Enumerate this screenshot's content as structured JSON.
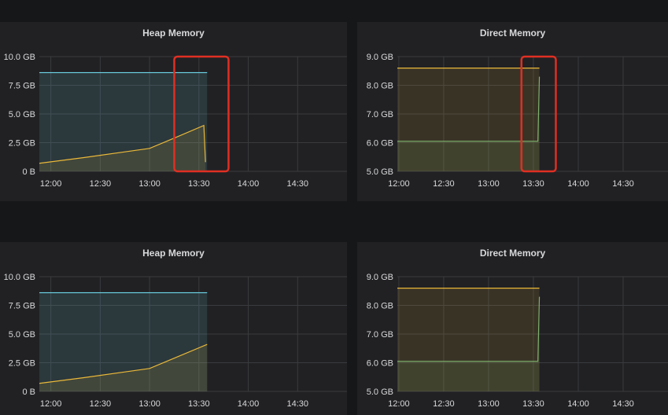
{
  "panels": [
    {
      "title": "Heap Memory"
    },
    {
      "title": "Direct Memory"
    },
    {
      "title": "Heap Memory"
    },
    {
      "title": "Direct Memory"
    }
  ],
  "chart_data": [
    {
      "type": "area",
      "title": "Heap Memory",
      "x_ticks": [
        "12:00",
        "12:30",
        "13:00",
        "13:30",
        "14:00",
        "14:30"
      ],
      "y_ticks": [
        "0 B",
        "2.5 GB",
        "5.0 GB",
        "7.5 GB",
        "10.0 GB"
      ],
      "xlim": [
        "11:53",
        "15:00"
      ],
      "ylim": [
        0,
        10
      ],
      "y_unit": "GB",
      "grid": true,
      "highlight_box": {
        "x_from": "13:15",
        "x_to": "13:48",
        "stroke": "#e02f22"
      },
      "series": [
        {
          "color": "#70dbed",
          "fill": true,
          "points": [
            [
              "11:53",
              8.6
            ],
            [
              "13:35",
              8.6
            ]
          ]
        },
        {
          "color": "#eab839",
          "fill": true,
          "points": [
            [
              "11:53",
              0.7
            ],
            [
              "12:20",
              1.2
            ],
            [
              "12:45",
              1.7
            ],
            [
              "13:00",
              2.0
            ],
            [
              "13:15",
              2.9
            ],
            [
              "13:33",
              4.0
            ],
            [
              "13:34",
              0.8
            ]
          ]
        }
      ]
    },
    {
      "type": "area",
      "title": "Direct Memory",
      "x_ticks": [
        "12:00",
        "12:30",
        "13:00",
        "13:30",
        "14:00",
        "14:30"
      ],
      "y_ticks": [
        "5.0 GB",
        "6.0 GB",
        "7.0 GB",
        "8.0 GB",
        "9.0 GB"
      ],
      "xlim": [
        "11:59",
        "15:00"
      ],
      "ylim": [
        5,
        9
      ],
      "y_unit": "GB",
      "grid": true,
      "highlight_box": {
        "x_from": "13:22",
        "x_to": "13:45",
        "stroke": "#e02f22"
      },
      "series": [
        {
          "color": "#eab839",
          "fill": true,
          "points": [
            [
              "11:59",
              8.6
            ],
            [
              "13:34",
              8.6
            ]
          ]
        },
        {
          "color": "#7eb26d",
          "fill": true,
          "points": [
            [
              "11:59",
              6.05
            ],
            [
              "13:33",
              6.05
            ],
            [
              "13:34",
              8.3
            ]
          ]
        }
      ]
    },
    {
      "type": "area",
      "title": "Heap Memory",
      "x_ticks": [
        "12:00",
        "12:30",
        "13:00",
        "13:30",
        "14:00",
        "14:30"
      ],
      "y_ticks": [
        "0 B",
        "2.5 GB",
        "5.0 GB",
        "7.5 GB",
        "10.0 GB"
      ],
      "xlim": [
        "11:53",
        "15:00"
      ],
      "ylim": [
        0,
        10
      ],
      "y_unit": "GB",
      "grid": true,
      "series": [
        {
          "color": "#70dbed",
          "fill": true,
          "points": [
            [
              "11:53",
              8.6
            ],
            [
              "13:35",
              8.6
            ]
          ]
        },
        {
          "color": "#eab839",
          "fill": true,
          "points": [
            [
              "11:53",
              0.7
            ],
            [
              "12:20",
              1.2
            ],
            [
              "12:45",
              1.7
            ],
            [
              "13:00",
              2.0
            ],
            [
              "13:15",
              2.9
            ],
            [
              "13:35",
              4.1
            ]
          ]
        }
      ]
    },
    {
      "type": "area",
      "title": "Direct Memory",
      "x_ticks": [
        "12:00",
        "12:30",
        "13:00",
        "13:30",
        "14:00",
        "14:30"
      ],
      "y_ticks": [
        "5.0 GB",
        "6.0 GB",
        "7.0 GB",
        "8.0 GB",
        "9.0 GB"
      ],
      "xlim": [
        "11:59",
        "15:00"
      ],
      "ylim": [
        5,
        9
      ],
      "y_unit": "GB",
      "grid": true,
      "series": [
        {
          "color": "#eab839",
          "fill": true,
          "points": [
            [
              "11:59",
              8.6
            ],
            [
              "13:34",
              8.6
            ]
          ]
        },
        {
          "color": "#7eb26d",
          "fill": true,
          "points": [
            [
              "11:59",
              6.05
            ],
            [
              "13:33",
              6.05
            ],
            [
              "13:34",
              8.3
            ]
          ]
        }
      ]
    }
  ]
}
